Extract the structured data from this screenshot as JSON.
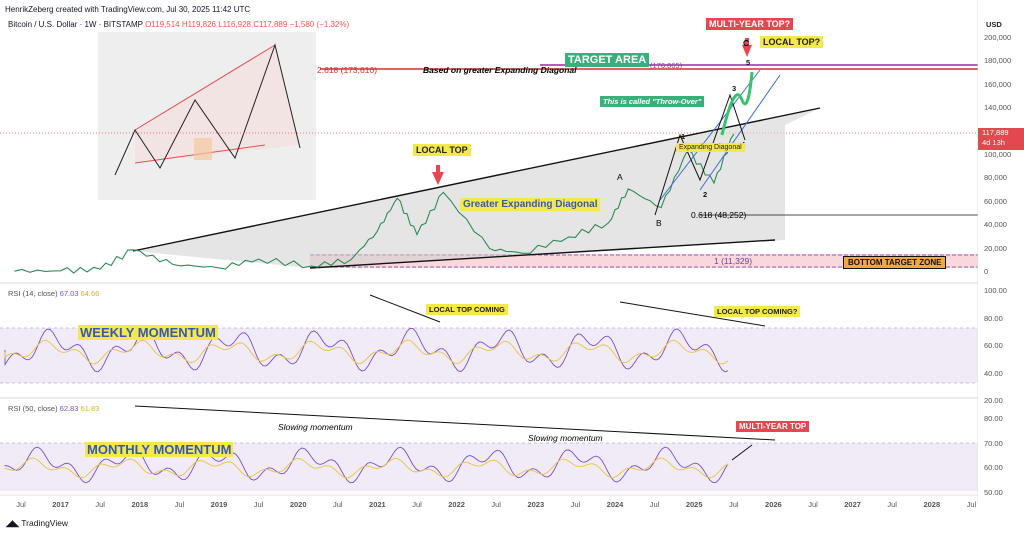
{
  "header": {
    "author_line": "HenrikZeberg created with TradingView.com, Jul 30, 2025 11:42 UTC",
    "symbol": "Bitcoin / U.S. Dollar · 1W · BITSTAMP",
    "ohlc": {
      "o": "O119,514",
      "h": "H119,826",
      "l": "L116,928",
      "c": "C117,889",
      "chg": "−1,580 (−1.32%)"
    }
  },
  "price_axis": {
    "unit": "USD",
    "ticks": [
      "200,000",
      "180,000",
      "160,000",
      "140,000",
      "120,000",
      "100,000",
      "80,000",
      "60,000",
      "40,000",
      "20,000",
      "0"
    ],
    "current_price": "117,889",
    "countdown": "4d 13h"
  },
  "rsi_weekly": {
    "label": "RSI (14, close)",
    "v1": "67.03",
    "v2": "64.66",
    "ticks": [
      "100.00",
      "80.00",
      "60.00",
      "40.00",
      "20.00"
    ],
    "title": "WEEKLY MOMENTUM",
    "note_left": "LOCAL TOP COMING",
    "note_right": "LOCAL TOP COMING?"
  },
  "rsi_monthly": {
    "label": "RSI (50, close)",
    "v1": "62.83",
    "v2": "61.83",
    "ticks": [
      "80.00",
      "70.00",
      "60.00",
      "50.00"
    ],
    "title": "MONTHLY MOMENTUM",
    "note1": "Slowing momentum",
    "note2": "Slowing momentum",
    "note_top": "MULTI-YEAR TOP"
  },
  "annotations": {
    "multi_year_top": "MULTI-YEAR TOP?",
    "local_top_q": "LOCAL TOP?",
    "target_area": "TARGET AREA",
    "fib_2618": "2.618 (173,610)",
    "fib_2618_note": "Based on greater Expanding Diagonal",
    "fib_176": "(176,865)",
    "throw_over": "This is called \"Throw-Over\"",
    "local_top": "LOCAL TOP",
    "greater_diag": "Greater Expanding Diagonal",
    "expanding_diag": "Expanding Diagonal",
    "fib_0618": "0.618 (48,252)",
    "fib_1": "1 (11,329)",
    "bottom_zone": "BOTTOM TARGET ZONE",
    "wave_c": "C",
    "wave_5": "5",
    "wave_3": "3",
    "wave_1": "1",
    "wave_2": "2",
    "wave_4": "4",
    "wave_a": "A",
    "wave_b": "B"
  },
  "x_axis": {
    "ticks": [
      "Jul",
      "2017",
      "Jul",
      "2018",
      "Jul",
      "2019",
      "Jul",
      "2020",
      "Jul",
      "2021",
      "Jul",
      "2022",
      "Jul",
      "2023",
      "Jul",
      "2024",
      "Jul",
      "2025",
      "Jul",
      "2026",
      "Jul",
      "2027",
      "Jul",
      "2028",
      "Jul"
    ]
  },
  "footer": {
    "brand": "TradingView"
  },
  "chart_data": {
    "type": "line",
    "title": "Bitcoin / U.S. Dollar · 1W · BITSTAMP",
    "ylabel": "USD",
    "ylim": [
      0,
      200000
    ],
    "series": [
      {
        "name": "Bitcoin / U.S. Dollar",
        "x": [
          "2016-06",
          "2017-01",
          "2017-07",
          "2017-12",
          "2018-06",
          "2019-01",
          "2019-07",
          "2020-03",
          "2020-09",
          "2021-01",
          "2021-04",
          "2021-07",
          "2021-11",
          "2022-06",
          "2022-11",
          "2023-06",
          "2023-12",
          "2024-03",
          "2024-08",
          "2024-12",
          "2025-04",
          "2025-07"
        ],
        "values": [
          700,
          1000,
          2500,
          19000,
          6500,
          3500,
          11000,
          5000,
          10500,
          35000,
          63000,
          32000,
          68000,
          20000,
          16000,
          30000,
          42000,
          71000,
          55000,
          104000,
          76000,
          117889
        ]
      }
    ],
    "levels": [
      {
        "label": "2.618 (173,610)",
        "value": 173610
      },
      {
        "label": "(176,865)",
        "value": 176865
      },
      {
        "label": "0.618 (48,252)",
        "value": 48252
      },
      {
        "label": "1 (11,329)",
        "value": 11329
      }
    ]
  }
}
